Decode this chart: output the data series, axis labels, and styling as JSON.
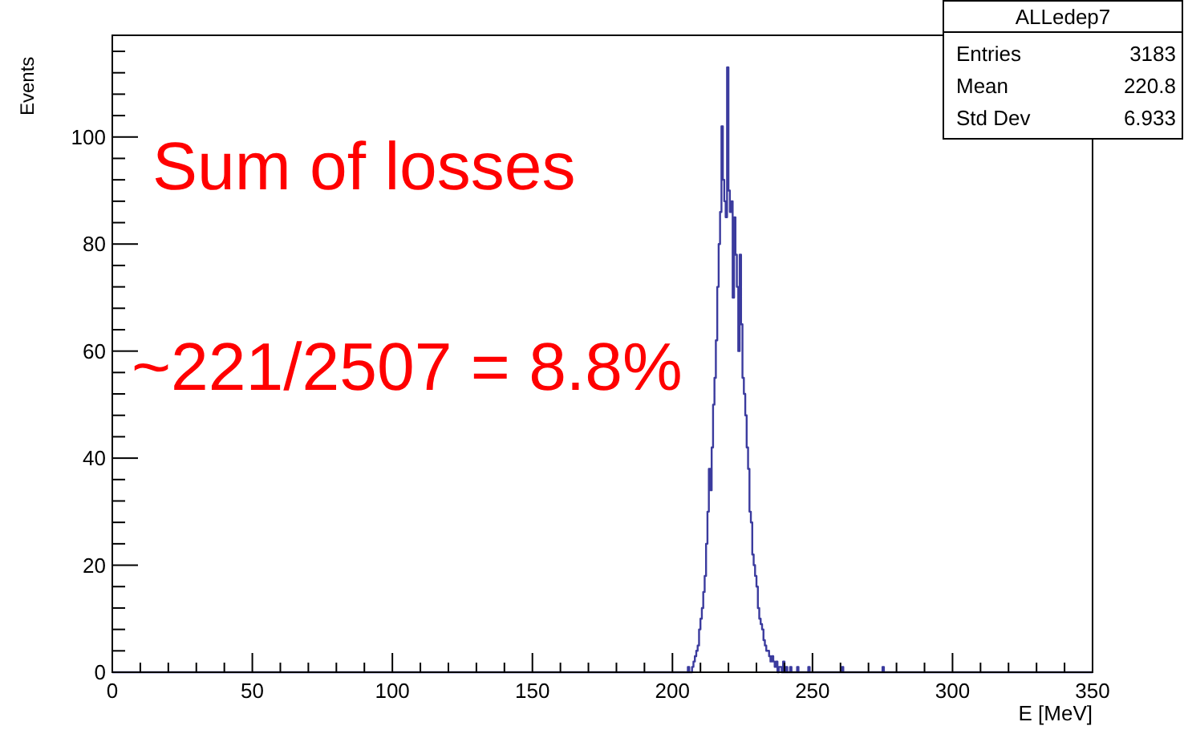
{
  "chart_data": {
    "type": "histogram",
    "title": "ALLedep7",
    "xlabel": "E [MeV]",
    "ylabel": "Events",
    "color": "#3b3b9e",
    "bins": [
      0,
      205,
      205.5,
      206,
      206.5,
      207,
      207.5,
      208,
      208.5,
      209,
      209.5,
      210,
      210.5,
      211,
      211.5,
      212,
      212.5,
      213,
      213.5,
      214,
      214.5,
      215,
      215.5,
      216,
      216.5,
      217,
      217.5,
      218,
      218.5,
      219,
      219.5,
      220,
      220.5,
      221,
      221.5,
      222,
      222.5,
      223,
      223.5,
      224,
      224.5,
      225,
      225.5,
      226,
      226.5,
      227,
      227.5,
      228,
      228.5,
      229,
      229.5,
      230,
      230.5,
      231,
      231.5,
      232,
      232.5,
      233,
      233.5,
      234,
      234.5,
      235,
      235.5,
      236,
      236.5,
      237,
      237.5,
      238,
      238.5,
      239,
      239.5,
      240,
      240.5,
      241,
      241.5,
      242,
      242.5,
      243,
      243.5,
      244,
      244.5,
      245,
      245.5,
      246,
      246.5,
      247,
      247.5,
      248,
      248.5,
      249,
      249.5,
      250,
      260.5,
      261,
      275,
      275.5,
      350
    ],
    "values": [
      0,
      0,
      1,
      0,
      0,
      1,
      2,
      3,
      4,
      5,
      8,
      10,
      12,
      15,
      18,
      24,
      30,
      38,
      34,
      42,
      50,
      55,
      62,
      72,
      80,
      86,
      102,
      92,
      88,
      85,
      113,
      90,
      86,
      88,
      70,
      85,
      78,
      72,
      60,
      78,
      65,
      55,
      52,
      48,
      42,
      38,
      30,
      28,
      22,
      20,
      18,
      16,
      12,
      10,
      9,
      8,
      6,
      5,
      4,
      4,
      3,
      2,
      3,
      2,
      1,
      2,
      0,
      1,
      1,
      0,
      2,
      0,
      1,
      0,
      0,
      1,
      0,
      0,
      0,
      0,
      1,
      0,
      0,
      0,
      0,
      0,
      0,
      0,
      1,
      0,
      0,
      0,
      1,
      0,
      1,
      0
    ],
    "xlim": [
      0,
      350
    ],
    "ylim": [
      0,
      119
    ],
    "xticks": [
      0,
      {
        "value": 10,
        "label": null
      },
      {
        "value": 20,
        "label": null
      },
      {
        "value": 30,
        "label": null
      },
      {
        "value": 40,
        "label": null
      },
      50,
      {
        "value": 60,
        "label": null
      },
      {
        "value": 70,
        "label": null
      },
      {
        "value": 80,
        "label": null
      },
      {
        "value": 90,
        "label": null
      },
      100,
      {
        "value": 110,
        "label": null
      },
      {
        "value": 120,
        "label": null
      },
      {
        "value": 130,
        "label": null
      },
      {
        "value": 140,
        "label": null
      },
      150,
      {
        "value": 160,
        "label": null
      },
      {
        "value": 170,
        "label": null
      },
      {
        "value": 180,
        "label": null
      },
      {
        "value": 190,
        "label": null
      },
      200,
      {
        "value": 210,
        "label": null
      },
      {
        "value": 220,
        "label": null
      },
      {
        "value": 230,
        "label": null
      },
      {
        "value": 240,
        "label": null
      },
      250,
      {
        "value": 260,
        "label": null
      },
      {
        "value": 270,
        "label": null
      },
      {
        "value": 280,
        "label": null
      },
      {
        "value": 290,
        "label": null
      },
      300,
      {
        "value": 310,
        "label": null
      },
      {
        "value": 320,
        "label": null
      },
      {
        "value": 330,
        "label": null
      },
      {
        "value": 340,
        "label": null
      },
      350
    ],
    "yticks": [
      0,
      {
        "value": 4,
        "label": null
      },
      {
        "value": 8,
        "label": null
      },
      {
        "value": 12,
        "label": null
      },
      {
        "value": 16,
        "label": null
      },
      20,
      {
        "value": 24,
        "label": null
      },
      {
        "value": 28,
        "label": null
      },
      {
        "value": 32,
        "label": null
      },
      {
        "value": 36,
        "label": null
      },
      40,
      {
        "value": 44,
        "label": null
      },
      {
        "value": 48,
        "label": null
      },
      {
        "value": 52,
        "label": null
      },
      {
        "value": 56,
        "label": null
      },
      60,
      {
        "value": 64,
        "label": null
      },
      {
        "value": 68,
        "label": null
      },
      {
        "value": 72,
        "label": null
      },
      {
        "value": 76,
        "label": null
      },
      80,
      {
        "value": 84,
        "label": null
      },
      {
        "value": 88,
        "label": null
      },
      {
        "value": 92,
        "label": null
      },
      {
        "value": 96,
        "label": null
      },
      100,
      {
        "value": 104,
        "label": null
      },
      {
        "value": 108,
        "label": null
      },
      {
        "value": 112,
        "label": null
      },
      {
        "value": 116,
        "label": null
      }
    ],
    "grid": false,
    "annotations": [
      "Entries",
      "3183",
      "Mean",
      "220.8",
      "Std Dev",
      "6.933",
      "Sum of losses",
      "~221/2507 = 8.8%"
    ]
  }
}
